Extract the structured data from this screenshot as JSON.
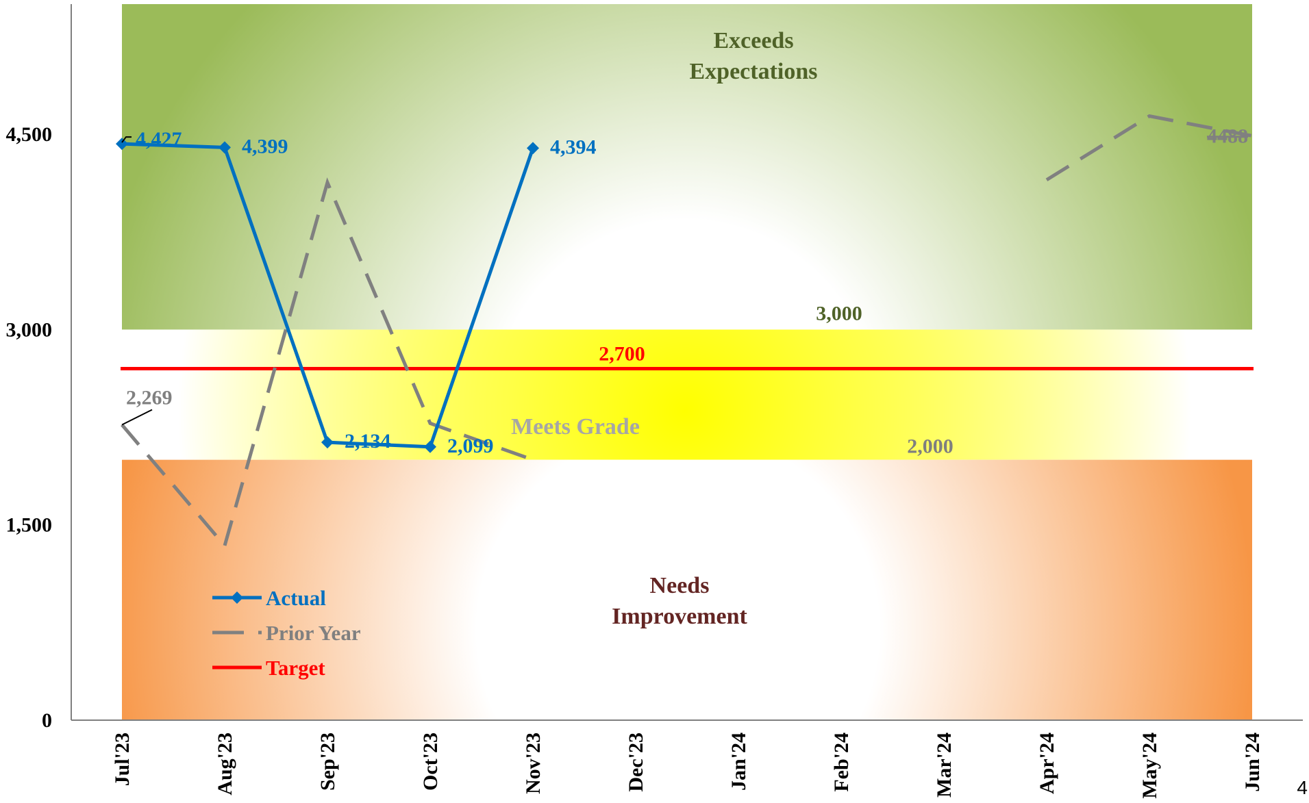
{
  "chart_data": {
    "type": "line",
    "categories": [
      "Jul'23",
      "Aug'23",
      "Sep'23",
      "Oct'23",
      "Nov'23",
      "Dec'23",
      "Jan'24",
      "Feb'24",
      "Mar'24",
      "Apr'24",
      "May'24",
      "Jun'24"
    ],
    "ylim": [
      0,
      5500
    ],
    "yticks": [
      0,
      1500,
      3000,
      4500
    ],
    "ytick_labels": [
      "0",
      "1,500",
      "3,000",
      "4,500"
    ],
    "grid": false,
    "legend_position": "bottom-left",
    "series": [
      {
        "name": "Actual",
        "color": "#0070C0",
        "style": "solid-diamond",
        "values": [
          4427,
          4399,
          2134,
          2099,
          4394,
          null,
          null,
          null,
          null,
          null,
          null,
          null
        ],
        "labels": [
          "4,427",
          "4,399",
          "2,134",
          "2,099",
          "4,394",
          "",
          "",
          "",
          "",
          "",
          "",
          ""
        ]
      },
      {
        "name": "Prior Year",
        "color": "#808080",
        "style": "dashed",
        "values": [
          2269,
          1340,
          4130,
          2280,
          2000,
          null,
          null,
          null,
          null,
          4150,
          4640,
          4488
        ],
        "labels": [
          "2,269",
          "",
          "",
          "",
          "",
          "",
          "",
          "",
          "",
          "",
          "",
          "4488"
        ]
      },
      {
        "name": "Target",
        "color": "#FF0000",
        "style": "solid",
        "constant": 2700,
        "label": "2,700"
      }
    ],
    "zones": [
      {
        "name": "exceeds",
        "label_lines": [
          "Exceeds",
          "Expectations"
        ],
        "from": 3000,
        "to": 5500,
        "color": "#9BBB59",
        "text_color": "#4F6228"
      },
      {
        "name": "meets",
        "label_lines": [
          "Meets Grade"
        ],
        "from": 2000,
        "to": 3000,
        "color": "#FFFF00",
        "text_color": "#A6A6A6"
      },
      {
        "name": "needs",
        "label_lines": [
          "Needs",
          "Improvement"
        ],
        "from": 0,
        "to": 2000,
        "color": "#F79646",
        "text_color": "#632523"
      }
    ],
    "threshold_labels": {
      "upper": {
        "value": 3000,
        "text": "3,000",
        "color": "#4F6228"
      },
      "lower": {
        "value": 2000,
        "text": "2,000",
        "color": "#7F7F7F"
      }
    }
  },
  "page": {
    "corner_mark": "4"
  }
}
